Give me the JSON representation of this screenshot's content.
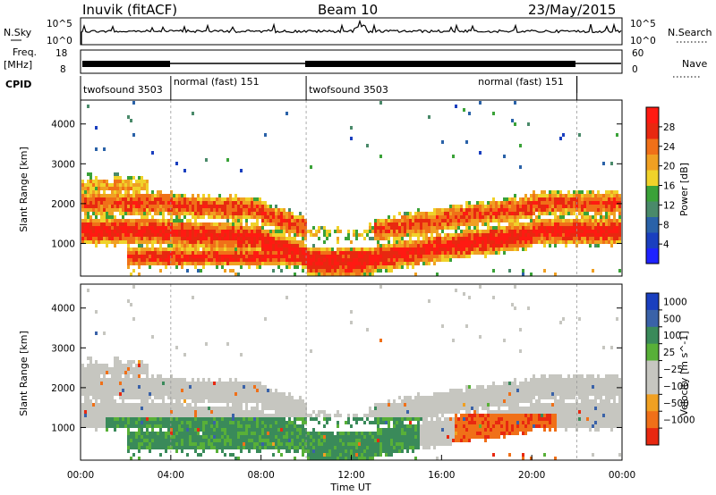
{
  "header": {
    "title": "Inuvik (fitACF)",
    "beam": "Beam 10",
    "date": "23/May/2015"
  },
  "colors": {
    "power": [
      "#1e22ff",
      "#1a3fbf",
      "#2a62a8",
      "#4a8a6a",
      "#3aa238",
      "#f0d22a",
      "#f0a022",
      "#f07018",
      "#e82810",
      "#ff1a12"
    ],
    "velocity": [
      "#1a3fbf",
      "#3a62a8",
      "#3a8a5a",
      "#58b038",
      "#c6c6c0",
      "#c6c6c0",
      "#f0a022",
      "#f07018",
      "#e82810"
    ],
    "ground": "#9aa09a"
  },
  "chart_data": [
    {
      "type": "line",
      "panel": "noise",
      "left_labels": [
        "N.Sky"
      ],
      "right_labels": [
        "N.Search"
      ],
      "left_ticks": [
        "10^5",
        "10^0"
      ],
      "right_ticks": [
        "10^5",
        "10^0"
      ],
      "series": [
        {
          "name": "N.Sky",
          "style": "solid"
        },
        {
          "name": "N.Search",
          "style": "dotted"
        }
      ]
    },
    {
      "type": "line",
      "panel": "frequency",
      "left_labels": [
        "Freq.",
        "[MHz]"
      ],
      "right_labels": [
        "Nave"
      ],
      "left_ticks": [
        "18",
        "8"
      ],
      "right_ticks": [
        "60",
        "0"
      ],
      "series": [
        {
          "name": "Freq",
          "style": "solid"
        },
        {
          "name": "Nave",
          "style": "dotted"
        }
      ]
    },
    {
      "type": "table",
      "panel": "cpid",
      "label": "CPID",
      "segments": [
        {
          "start": 0,
          "end": 4,
          "name": "twofsound 3503"
        },
        {
          "start": 4,
          "end": 10,
          "name": "normal (fast) 151"
        },
        {
          "start": 10,
          "end": 22,
          "name": "twofsound 3503"
        },
        {
          "start": 22,
          "end": 24,
          "name": "normal (fast) 151"
        }
      ],
      "segment_labels": [
        {
          "start": 0,
          "text": "twofsound 3503"
        },
        {
          "start": 4,
          "text": "normal (fast) 151"
        },
        {
          "start": 10,
          "text": "twofsound 3503"
        },
        {
          "start": 17.5,
          "text": "normal (fast) 151"
        }
      ]
    },
    {
      "type": "heatmap",
      "panel": "power",
      "ylabel": "Slant Range [km]",
      "xlim": [
        0,
        24
      ],
      "ylim": [
        180,
        4600
      ],
      "yticks": [
        1000,
        2000,
        3000,
        4000
      ],
      "colorbar_label": "Power [dB]",
      "colorbar_ticks": [
        4,
        8,
        12,
        16,
        20,
        24,
        28
      ],
      "colorbar_range": [
        0,
        32
      ]
    },
    {
      "type": "heatmap",
      "panel": "velocity",
      "ylabel": "Slant Range [km]",
      "xlabel": "Time UT",
      "xlim": [
        0,
        24
      ],
      "ylim": [
        180,
        4600
      ],
      "yticks": [
        1000,
        2000,
        3000,
        4000
      ],
      "xticks": [
        "00:00",
        "04:00",
        "08:00",
        "12:00",
        "16:00",
        "20:00",
        "00:00"
      ],
      "colorbar_label": "Velocity [m s^-1]",
      "colorbar_ticks": [
        "1000",
        "500",
        "100",
        "25",
        "−25",
        "−100",
        "−500",
        "−1000"
      ]
    }
  ]
}
